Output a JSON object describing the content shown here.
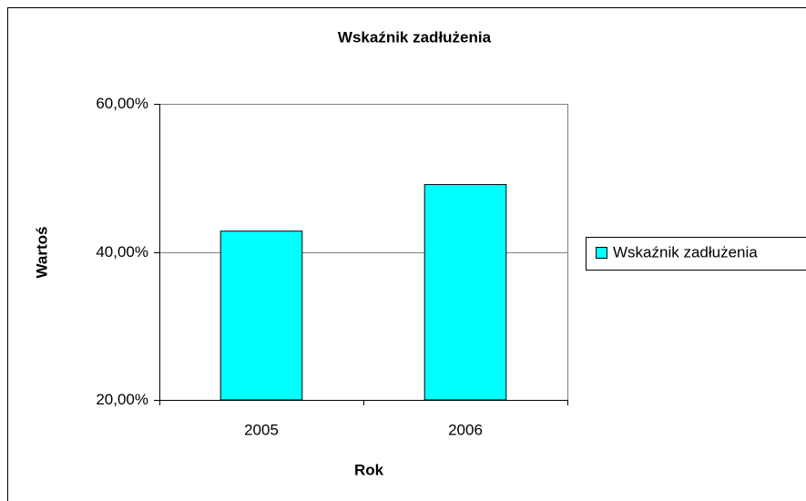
{
  "chart_data": {
    "type": "bar",
    "title": "Wskaźnik zadłużenia",
    "x_label": "Rok",
    "y_label": "Wartoś",
    "categories": [
      "2005",
      "2006"
    ],
    "series": [
      {
        "name": "Wskaźnik zadłużenia",
        "color": "#00ffff",
        "values": [
          42.8,
          49.1
        ]
      }
    ],
    "ylim": [
      20,
      60
    ],
    "yticks": [
      {
        "value": 20,
        "label": "20,00%"
      },
      {
        "value": 40,
        "label": "40,00%"
      },
      {
        "value": 60,
        "label": "60,00%"
      }
    ],
    "grid": true,
    "legend": "right"
  }
}
